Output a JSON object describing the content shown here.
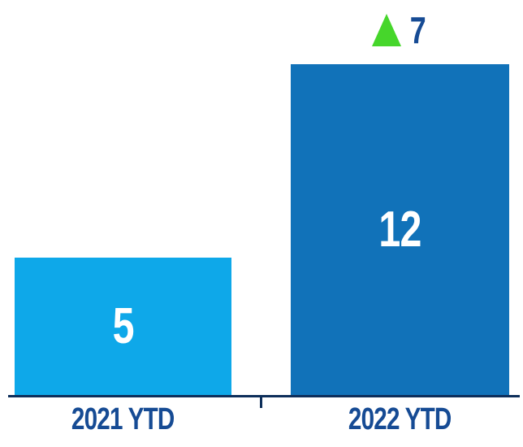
{
  "chart_data": {
    "type": "bar",
    "categories": [
      "2021 YTD",
      "2022 YTD"
    ],
    "values": [
      5,
      12
    ],
    "title": "",
    "xlabel": "",
    "ylabel": "",
    "ylim": [
      0,
      12
    ],
    "grid": false,
    "legend": false,
    "bar_colors": [
      "#0ea8e9",
      "#1172b9"
    ],
    "value_label_color": "#ffffff",
    "axis_color": "#0d2e5a",
    "category_label_color": "#164b94",
    "annotation": {
      "value": "7",
      "icon": "up-triangle",
      "icon_color": "#46d62b",
      "text_color": "#164b94",
      "above_category": "2022 YTD"
    }
  }
}
